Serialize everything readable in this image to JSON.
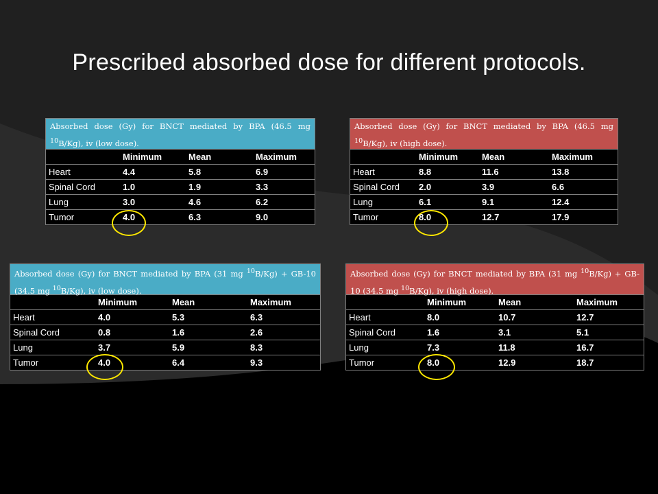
{
  "title": "Prescribed absorbed dose for different protocols.",
  "columns": [
    "Minimum",
    "Mean",
    "Maximum"
  ],
  "tables": [
    {
      "caption_pre": "Absorbed dose (Gy) for BNCT mediated by BPA (46.5 mg ",
      "caption_sup": "10",
      "caption_post": "B/Kg), iv (low dose).",
      "rows": [
        {
          "label": "Heart",
          "values": [
            "4.4",
            "5.8",
            "6.9"
          ]
        },
        {
          "label": "Spinal Cord",
          "values": [
            "1.0",
            "1.9",
            "3.3"
          ]
        },
        {
          "label": "Lung",
          "values": [
            "3.0",
            "4.6",
            "6.2"
          ]
        },
        {
          "label": "Tumor",
          "values": [
            "4.0",
            "6.3",
            "9.0"
          ]
        }
      ]
    },
    {
      "caption_pre": "Absorbed dose (Gy) for BNCT mediated by BPA (46.5 mg ",
      "caption_sup": "10",
      "caption_post": "B/Kg), iv (high dose).",
      "rows": [
        {
          "label": "Heart",
          "values": [
            "8.8",
            "11.6",
            "13.8"
          ]
        },
        {
          "label": "Spinal Cord",
          "values": [
            "2.0",
            "3.9",
            "6.6"
          ]
        },
        {
          "label": "Lung",
          "values": [
            "6.1",
            "9.1",
            "12.4"
          ]
        },
        {
          "label": "Tumor",
          "values": [
            "8.0",
            "12.7",
            "17.9"
          ]
        }
      ]
    },
    {
      "caption_pre": "Absorbed dose (Gy) for BNCT mediated by BPA (31 mg ",
      "caption_sup": "10",
      "caption_post": "B/Kg) + GB-10 (34.5 mg ",
      "caption_sup2": "10",
      "caption_post2": "B/Kg), iv (low dose).",
      "rows": [
        {
          "label": "Heart",
          "values": [
            "4.0",
            "5.3",
            "6.3"
          ]
        },
        {
          "label": "Spinal Cord",
          "values": [
            "0.8",
            "1.6",
            "2.6"
          ]
        },
        {
          "label": "Lung",
          "values": [
            "3.7",
            "5.9",
            "8.3"
          ]
        },
        {
          "label": "Tumor",
          "values": [
            "4.0",
            "6.4",
            "9.3"
          ]
        }
      ]
    },
    {
      "caption_pre": "Absorbed dose (Gy) for BNCT mediated by BPA (31 mg ",
      "caption_sup": "10",
      "caption_post": "B/Kg) + GB-10 (34.5 mg ",
      "caption_sup2": "10",
      "caption_post2": "B/Kg), iv (high dose).",
      "rows": [
        {
          "label": "Heart",
          "values": [
            "8.0",
            "10.7",
            "12.7"
          ]
        },
        {
          "label": "Spinal Cord",
          "values": [
            "1.6",
            "3.1",
            "5.1"
          ]
        },
        {
          "label": "Lung",
          "values": [
            "7.3",
            "11.8",
            "16.7"
          ]
        },
        {
          "label": "Tumor",
          "values": [
            "8.0",
            "12.9",
            "18.7"
          ]
        }
      ]
    }
  ]
}
